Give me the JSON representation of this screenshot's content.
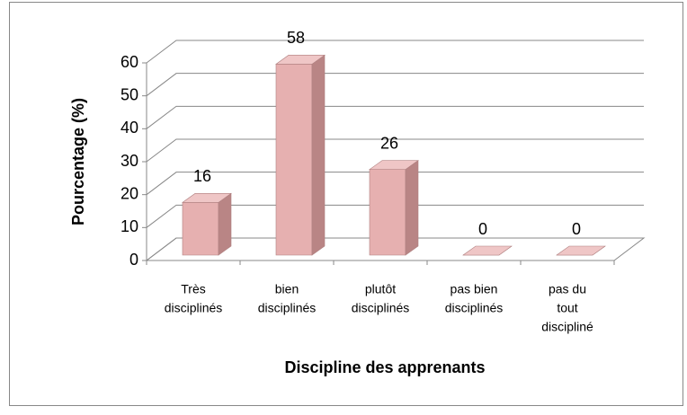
{
  "chart_data": {
    "type": "bar3d",
    "categories": [
      [
        "Très",
        "disciplinés"
      ],
      [
        "bien",
        "disciplinés"
      ],
      [
        "plutôt",
        "disciplinés"
      ],
      [
        "pas bien",
        "disciplinés"
      ],
      [
        "pas du",
        "tout",
        "discipliné"
      ]
    ],
    "values": [
      16,
      58,
      26,
      0,
      0
    ],
    "color": "#e6b0b0",
    "ylim": [
      0,
      60
    ],
    "yticks": [
      0,
      10,
      20,
      30,
      40,
      50,
      60
    ],
    "grid": true,
    "y_label": "Pourcentage (%)",
    "x_label": "Discipline des apprenants"
  }
}
